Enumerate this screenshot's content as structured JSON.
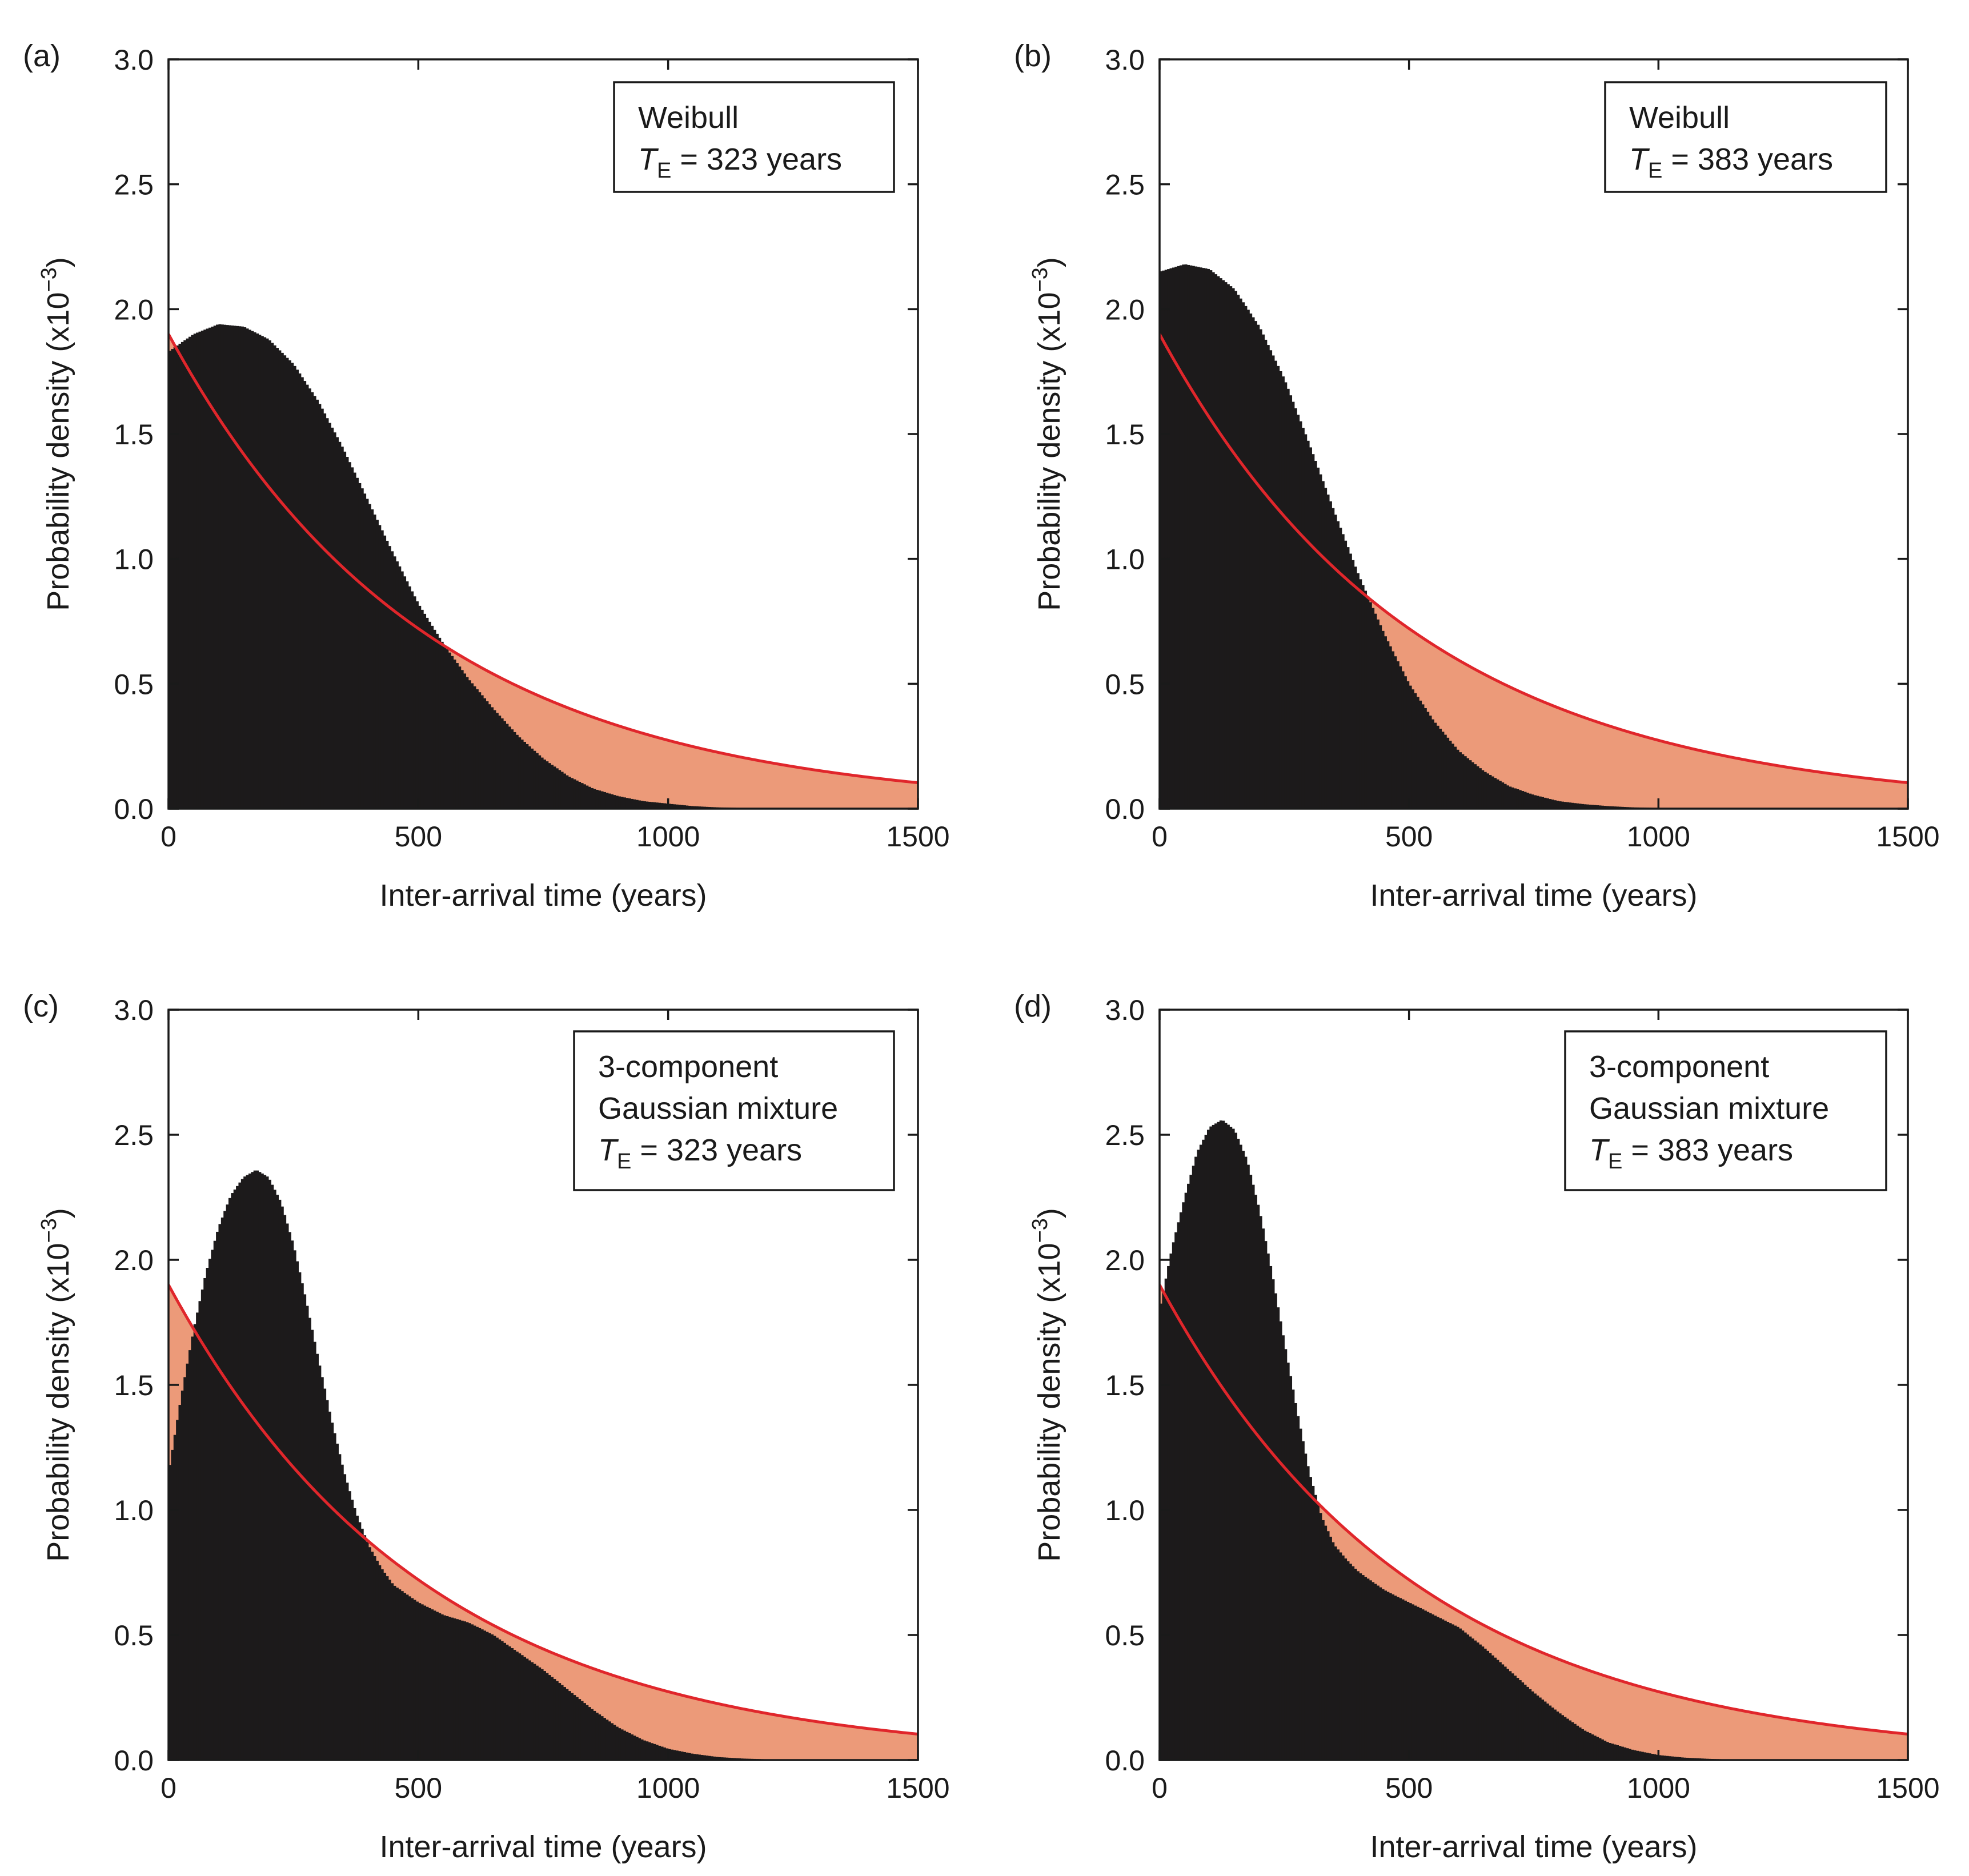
{
  "figure": {
    "colors": {
      "histogram": "#1c1a1b",
      "exponential_line": "#e0262b",
      "shaded_area": "#ec9a79",
      "axes": "#1a1a1a",
      "background": "#ffffff"
    }
  },
  "chart_data": [
    {
      "id": "a",
      "panel_label": "(a)",
      "type": "bar",
      "legend": {
        "lines": [
          "Weibull"
        ],
        "te_symbol": "T",
        "te_sub": "E",
        "te_text": "= 323 years"
      },
      "xlabel": "Inter-arrival time (years)",
      "ylabel": "Probability density (x10",
      "ylabel_exp": "−3",
      "ylabel_close": ")",
      "xlim": [
        0,
        1500
      ],
      "ylim": [
        0,
        3.0
      ],
      "xticks": [
        0,
        500,
        1000,
        1500
      ],
      "xtick_labels": [
        "0",
        "500",
        "1000",
        "1500"
      ],
      "yticks": [
        0,
        0.5,
        1.0,
        1.5,
        2.0,
        2.5,
        3.0
      ],
      "ytick_labels": [
        "0.0",
        "0.5",
        "1.0",
        "1.5",
        "2.0",
        "2.5",
        "3.0"
      ],
      "histogram": {
        "x": [
          0,
          50,
          100,
          150,
          200,
          250,
          300,
          350,
          400,
          450,
          500,
          550,
          600,
          650,
          700,
          750,
          800,
          850,
          900,
          950,
          1000,
          1050,
          1100,
          1150,
          1200,
          1250,
          1300,
          1500
        ],
        "y": [
          1.83,
          1.9,
          1.94,
          1.93,
          1.88,
          1.78,
          1.63,
          1.44,
          1.23,
          1.02,
          0.82,
          0.66,
          0.52,
          0.4,
          0.29,
          0.2,
          0.13,
          0.08,
          0.05,
          0.03,
          0.02,
          0.01,
          0.005,
          0.003,
          0.002,
          0.001,
          0.0,
          0.0
        ]
      },
      "exponential": {
        "mean": 516,
        "y0": 1.9
      }
    },
    {
      "id": "b",
      "panel_label": "(b)",
      "type": "bar",
      "legend": {
        "lines": [
          "Weibull"
        ],
        "te_symbol": "T",
        "te_sub": "E",
        "te_text": "= 383 years"
      },
      "xlabel": "Inter-arrival time (years)",
      "ylabel": "Probability density (x10",
      "ylabel_exp": "−3",
      "ylabel_close": ")",
      "xlim": [
        0,
        1500
      ],
      "ylim": [
        0,
        3.0
      ],
      "xticks": [
        0,
        500,
        1000,
        1500
      ],
      "xtick_labels": [
        "0",
        "500",
        "1000",
        "1500"
      ],
      "yticks": [
        0,
        0.5,
        1.0,
        1.5,
        2.0,
        2.5,
        3.0
      ],
      "ytick_labels": [
        "0.0",
        "0.5",
        "1.0",
        "1.5",
        "2.0",
        "2.5",
        "3.0"
      ],
      "histogram": {
        "x": [
          0,
          50,
          100,
          150,
          200,
          250,
          300,
          350,
          400,
          450,
          500,
          550,
          600,
          650,
          700,
          750,
          800,
          850,
          900,
          950,
          1000,
          1050,
          1100,
          1150,
          1200,
          1500
        ],
        "y": [
          2.15,
          2.18,
          2.16,
          2.08,
          1.93,
          1.72,
          1.46,
          1.19,
          0.93,
          0.7,
          0.5,
          0.35,
          0.23,
          0.15,
          0.09,
          0.055,
          0.03,
          0.018,
          0.01,
          0.005,
          0.003,
          0.002,
          0.001,
          0.0,
          0.0,
          0.0
        ]
      },
      "exponential": {
        "mean": 516,
        "y0": 1.9
      }
    },
    {
      "id": "c",
      "panel_label": "(c)",
      "type": "bar",
      "legend": {
        "lines": [
          "3-component",
          "Gaussian mixture"
        ],
        "te_symbol": "T",
        "te_sub": "E",
        "te_text": "= 323 years"
      },
      "xlabel": "Inter-arrival time (years)",
      "ylabel": "Probability density (x10",
      "ylabel_exp": "−3",
      "ylabel_close": ")",
      "xlim": [
        0,
        1500
      ],
      "ylim": [
        0,
        3.0
      ],
      "xticks": [
        0,
        500,
        1000,
        1500
      ],
      "xtick_labels": [
        "0",
        "500",
        "1000",
        "1500"
      ],
      "yticks": [
        0,
        0.5,
        1.0,
        1.5,
        2.0,
        2.5,
        3.0
      ],
      "ytick_labels": [
        "0.0",
        "0.5",
        "1.0",
        "1.5",
        "2.0",
        "2.5",
        "3.0"
      ],
      "histogram": {
        "x": [
          0,
          25,
          50,
          75,
          100,
          125,
          150,
          175,
          200,
          225,
          250,
          275,
          300,
          325,
          350,
          375,
          400,
          425,
          450,
          500,
          550,
          600,
          650,
          700,
          750,
          800,
          850,
          900,
          950,
          1000,
          1050,
          1100,
          1150,
          1200,
          1300,
          1500
        ],
        "y": [
          1.15,
          1.45,
          1.72,
          1.95,
          2.13,
          2.26,
          2.33,
          2.36,
          2.33,
          2.23,
          2.06,
          1.84,
          1.6,
          1.37,
          1.16,
          0.99,
          0.86,
          0.77,
          0.7,
          0.63,
          0.58,
          0.55,
          0.5,
          0.43,
          0.36,
          0.28,
          0.2,
          0.13,
          0.08,
          0.045,
          0.025,
          0.012,
          0.006,
          0.003,
          0.0,
          0.0
        ]
      },
      "exponential": {
        "mean": 516,
        "y0": 1.9
      }
    },
    {
      "id": "d",
      "panel_label": "(d)",
      "type": "bar",
      "legend": {
        "lines": [
          "3-component",
          "Gaussian mixture"
        ],
        "te_symbol": "T",
        "te_sub": "E",
        "te_text": "= 383 years"
      },
      "xlabel": "Inter-arrival time (years)",
      "ylabel": "Probability density (x10",
      "ylabel_exp": "−3",
      "ylabel_close": ")",
      "xlim": [
        0,
        1500
      ],
      "ylim": [
        0,
        3.0
      ],
      "xticks": [
        0,
        500,
        1000,
        1500
      ],
      "xtick_labels": [
        "0",
        "500",
        "1000",
        "1500"
      ],
      "yticks": [
        0,
        0.5,
        1.0,
        1.5,
        2.0,
        2.5,
        3.0
      ],
      "ytick_labels": [
        "0.0",
        "0.5",
        "1.0",
        "1.5",
        "2.0",
        "2.5",
        "3.0"
      ],
      "histogram": {
        "x": [
          0,
          25,
          50,
          75,
          100,
          125,
          150,
          175,
          200,
          225,
          250,
          275,
          300,
          325,
          350,
          375,
          400,
          450,
          500,
          550,
          600,
          650,
          700,
          750,
          800,
          850,
          900,
          950,
          1000,
          1050,
          1100,
          1150,
          1200,
          1300,
          1500
        ],
        "y": [
          1.8,
          2.05,
          2.25,
          2.43,
          2.53,
          2.56,
          2.52,
          2.4,
          2.2,
          1.95,
          1.67,
          1.4,
          1.15,
          0.97,
          0.86,
          0.8,
          0.75,
          0.68,
          0.63,
          0.58,
          0.53,
          0.45,
          0.36,
          0.27,
          0.19,
          0.12,
          0.07,
          0.04,
          0.02,
          0.01,
          0.005,
          0.002,
          0.001,
          0.0,
          0.0
        ]
      },
      "exponential": {
        "mean": 516,
        "y0": 1.9
      }
    }
  ]
}
